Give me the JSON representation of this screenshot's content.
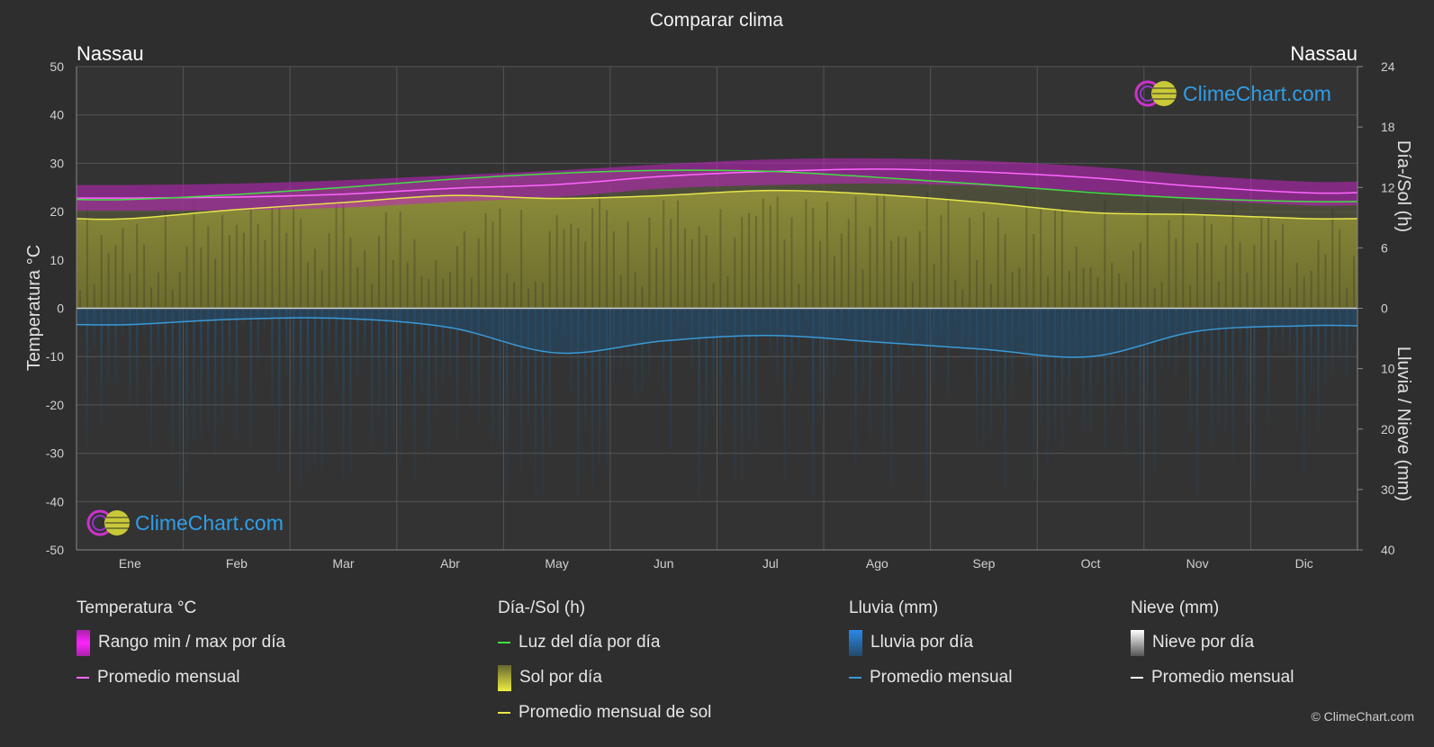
{
  "chart_data": {
    "type": "line",
    "title": "Comparar clima",
    "location_left": "Nassau",
    "location_right": "Nassau",
    "watermark": "ClimeChart.com",
    "copyright": "© ClimeChart.com",
    "categories": [
      "Ene",
      "Feb",
      "Mar",
      "Abr",
      "May",
      "Jun",
      "Jul",
      "Ago",
      "Sep",
      "Oct",
      "Nov",
      "Dic"
    ],
    "y_left": {
      "label": "Temperatura °C",
      "ticks": [
        50,
        40,
        30,
        20,
        10,
        0,
        -10,
        -20,
        -30,
        -40,
        -50
      ],
      "range": [
        -50,
        50
      ]
    },
    "y_right_top": {
      "label": "Día-/Sol (h)",
      "ticks": [
        24,
        18,
        12,
        6,
        0
      ],
      "range": [
        0,
        24
      ]
    },
    "y_right_bottom": {
      "label": "Lluvia / Nieve (mm)",
      "ticks": [
        0,
        10,
        20,
        30,
        40
      ],
      "range": [
        0,
        40
      ]
    },
    "grid": true,
    "series": [
      {
        "name": "Promedio mensual",
        "group": "Temperatura °C",
        "axis": "temperature",
        "color": "#ff66ff",
        "values": [
          22.8,
          23.0,
          23.6,
          24.8,
          25.6,
          27.3,
          28.3,
          28.8,
          28.2,
          27.0,
          25.2,
          23.9
        ]
      },
      {
        "name": "Luz del día por día",
        "group": "Día-/Sol (h)",
        "axis": "sun",
        "color": "#44dd44",
        "values": [
          10.8,
          11.3,
          12.0,
          12.8,
          13.4,
          13.7,
          13.6,
          13.0,
          12.3,
          11.5,
          10.9,
          10.6
        ]
      },
      {
        "name": "Promedio mensual de sol",
        "group": "Día-/Sol (h)",
        "axis": "sun",
        "color": "#e6e64a",
        "values": [
          8.9,
          9.8,
          10.5,
          11.2,
          10.9,
          11.2,
          11.7,
          11.3,
          10.5,
          9.5,
          9.3,
          8.9
        ]
      },
      {
        "name": "Promedio mensual",
        "group": "Lluvia (mm)",
        "axis": "rain",
        "color": "#3a9ad8",
        "values": [
          2.7,
          1.8,
          1.7,
          3.2,
          7.4,
          5.4,
          4.5,
          5.6,
          6.8,
          8.0,
          3.8,
          2.9
        ]
      },
      {
        "name": "Promedio mensual",
        "group": "Nieve (mm)",
        "axis": "rain",
        "color": "#ffffff",
        "values": [
          0,
          0,
          0,
          0,
          0,
          0,
          0,
          0,
          0,
          0,
          0,
          0
        ]
      }
    ],
    "temp_range_band": {
      "name": "Rango min / max por día",
      "max": [
        25.5,
        25.8,
        26.5,
        27.5,
        28.5,
        29.8,
        30.8,
        31.0,
        30.5,
        29.3,
        27.5,
        26.2
      ],
      "min": [
        20.2,
        20.3,
        20.8,
        22.0,
        23.0,
        24.8,
        25.5,
        25.8,
        25.3,
        24.2,
        22.5,
        21.3
      ]
    },
    "legend": [
      {
        "title": "Temperatura °C",
        "items": [
          {
            "label": "Rango min / max por día",
            "swatch": "box",
            "color": "#dd22dd"
          },
          {
            "label": "Promedio mensual",
            "swatch": "line",
            "color": "#ff66ff"
          }
        ]
      },
      {
        "title": "Día-/Sol (h)",
        "items": [
          {
            "label": "Luz del día por día",
            "swatch": "line",
            "color": "#44dd44"
          },
          {
            "label": "Sol por día",
            "swatch": "box",
            "color": "#d4d42e"
          },
          {
            "label": "Promedio mensual de sol",
            "swatch": "line",
            "color": "#e6e64a"
          }
        ]
      },
      {
        "title": "Lluvia (mm)",
        "items": [
          {
            "label": "Lluvia por día",
            "swatch": "box",
            "color": "#2a88d8"
          },
          {
            "label": "Promedio mensual",
            "swatch": "line",
            "color": "#3a9ad8"
          }
        ]
      },
      {
        "title": "Nieve (mm)",
        "items": [
          {
            "label": "Nieve por día",
            "swatch": "box",
            "color": "#dddddd"
          },
          {
            "label": "Promedio mensual",
            "swatch": "line",
            "color": "#ffffff"
          }
        ]
      }
    ]
  }
}
